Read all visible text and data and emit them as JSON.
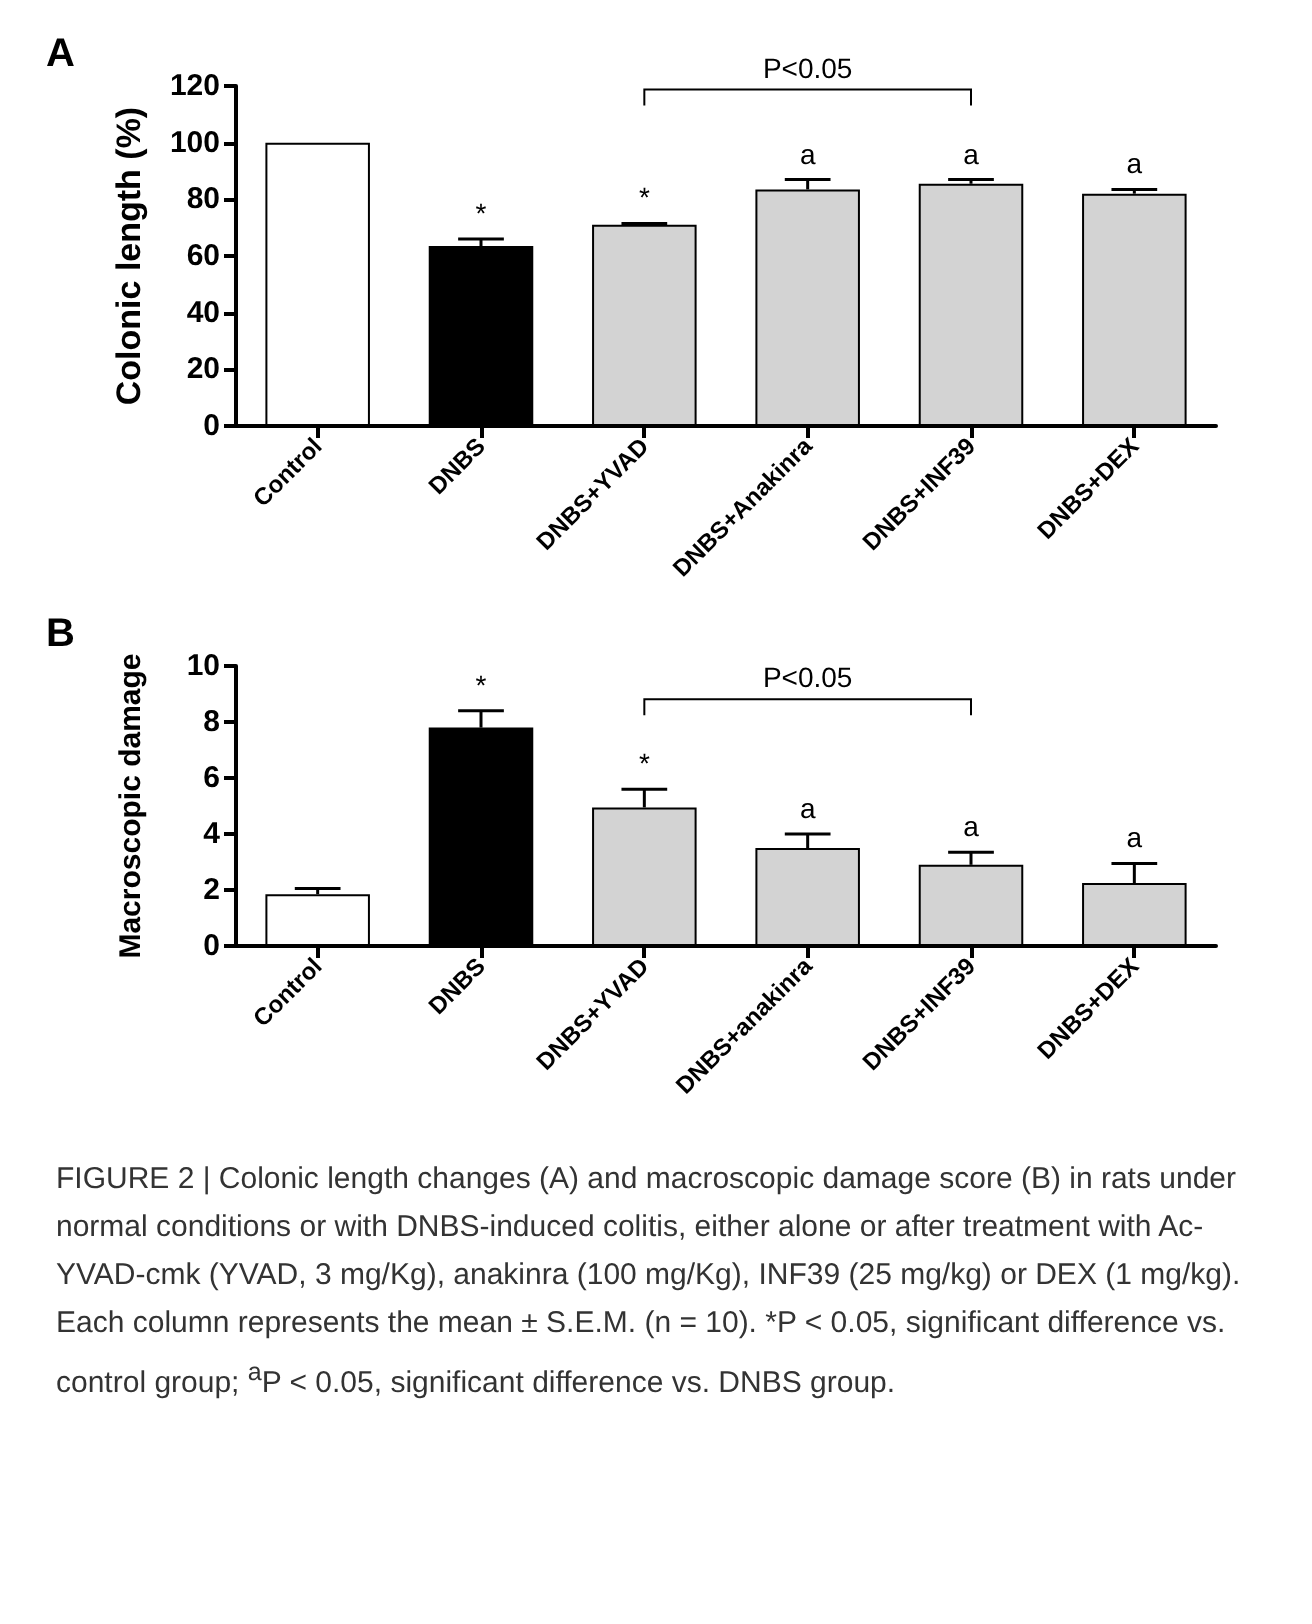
{
  "chart_data": [
    {
      "type": "bar",
      "title": "A",
      "ylabel": "Colonic length (%)",
      "categories": [
        "Control",
        "DNBS",
        "DNBS+YVAD",
        "DNBS+Anakinra",
        "DNBS+INF39",
        "DNBS+DEX"
      ],
      "values": [
        100,
        63.5,
        71,
        83.5,
        85.5,
        82
      ],
      "errors": [
        null,
        2.5,
        0.5,
        3.5,
        1.5,
        1.5
      ],
      "colors": [
        "#ffffff",
        "#000000",
        "#d3d3d3",
        "#d3d3d3",
        "#d3d3d3",
        "#d3d3d3"
      ],
      "ylim": [
        0,
        120
      ],
      "yticks": [
        0,
        20,
        40,
        60,
        80,
        100,
        120
      ],
      "grid": false,
      "annotations": [
        {
          "text": "*",
          "x": "DNBS",
          "y": 63.5
        },
        {
          "text": "*",
          "x": "DNBS+YVAD",
          "y": 71
        },
        {
          "text": "a",
          "x": "DNBS+Anakinra",
          "y": 83.5
        },
        {
          "text": "a",
          "x": "DNBS+INF39",
          "y": 85.5
        },
        {
          "text": "a",
          "x": "DNBS+DEX",
          "y": 82
        },
        "P<0.05"
      ]
    },
    {
      "type": "bar",
      "title": "B",
      "ylabel": "Macroscopic damage",
      "categories": [
        "Control",
        "DNBS",
        "DNBS+YVAD",
        "DNBS+anakinra",
        "DNBS+INF39",
        "DNBS+DEX"
      ],
      "values": [
        1.85,
        7.8,
        4.95,
        3.5,
        2.9,
        2.25
      ],
      "errors": [
        0.2,
        0.6,
        0.65,
        0.5,
        0.45,
        0.7
      ],
      "colors": [
        "#ffffff",
        "#000000",
        "#d3d3d3",
        "#d3d3d3",
        "#d3d3d3",
        "#d3d3d3"
      ],
      "ylim": [
        0,
        10
      ],
      "yticks": [
        0,
        2,
        4,
        6,
        8,
        10
      ],
      "grid": false,
      "annotations": [
        {
          "text": "*",
          "x": "DNBS",
          "y": 7.8
        },
        {
          "text": "*",
          "x": "DNBS+YVAD",
          "y": 4.95
        },
        {
          "text": "a",
          "x": "DNBS+anakinra",
          "y": 3.5
        },
        {
          "text": "a",
          "x": "DNBS+INF39",
          "y": 2.9
        },
        {
          "text": "a",
          "x": "DNBS+DEX",
          "y": 2.25
        },
        "P<0.05",
        "FIGURE 2 | Colonic length changes (A) and macroscopic damage score (B) in rats under normal conditions or with DNBS-induced colitis, either alone or after treatment with Ac-YVAD-cmk (YVAD, 3 mg/Kg), anakinra (100 mg/Kg), INF39 (25 mg/kg) or DEX (1 mg/kg). Each column represents the mean ± S.E.M. (n = 10). *P < 0.05, significant difference vs. control group; $^{a}$P < 0.05, significant difference vs. DNBS group."
      ]
    }
  ]
}
